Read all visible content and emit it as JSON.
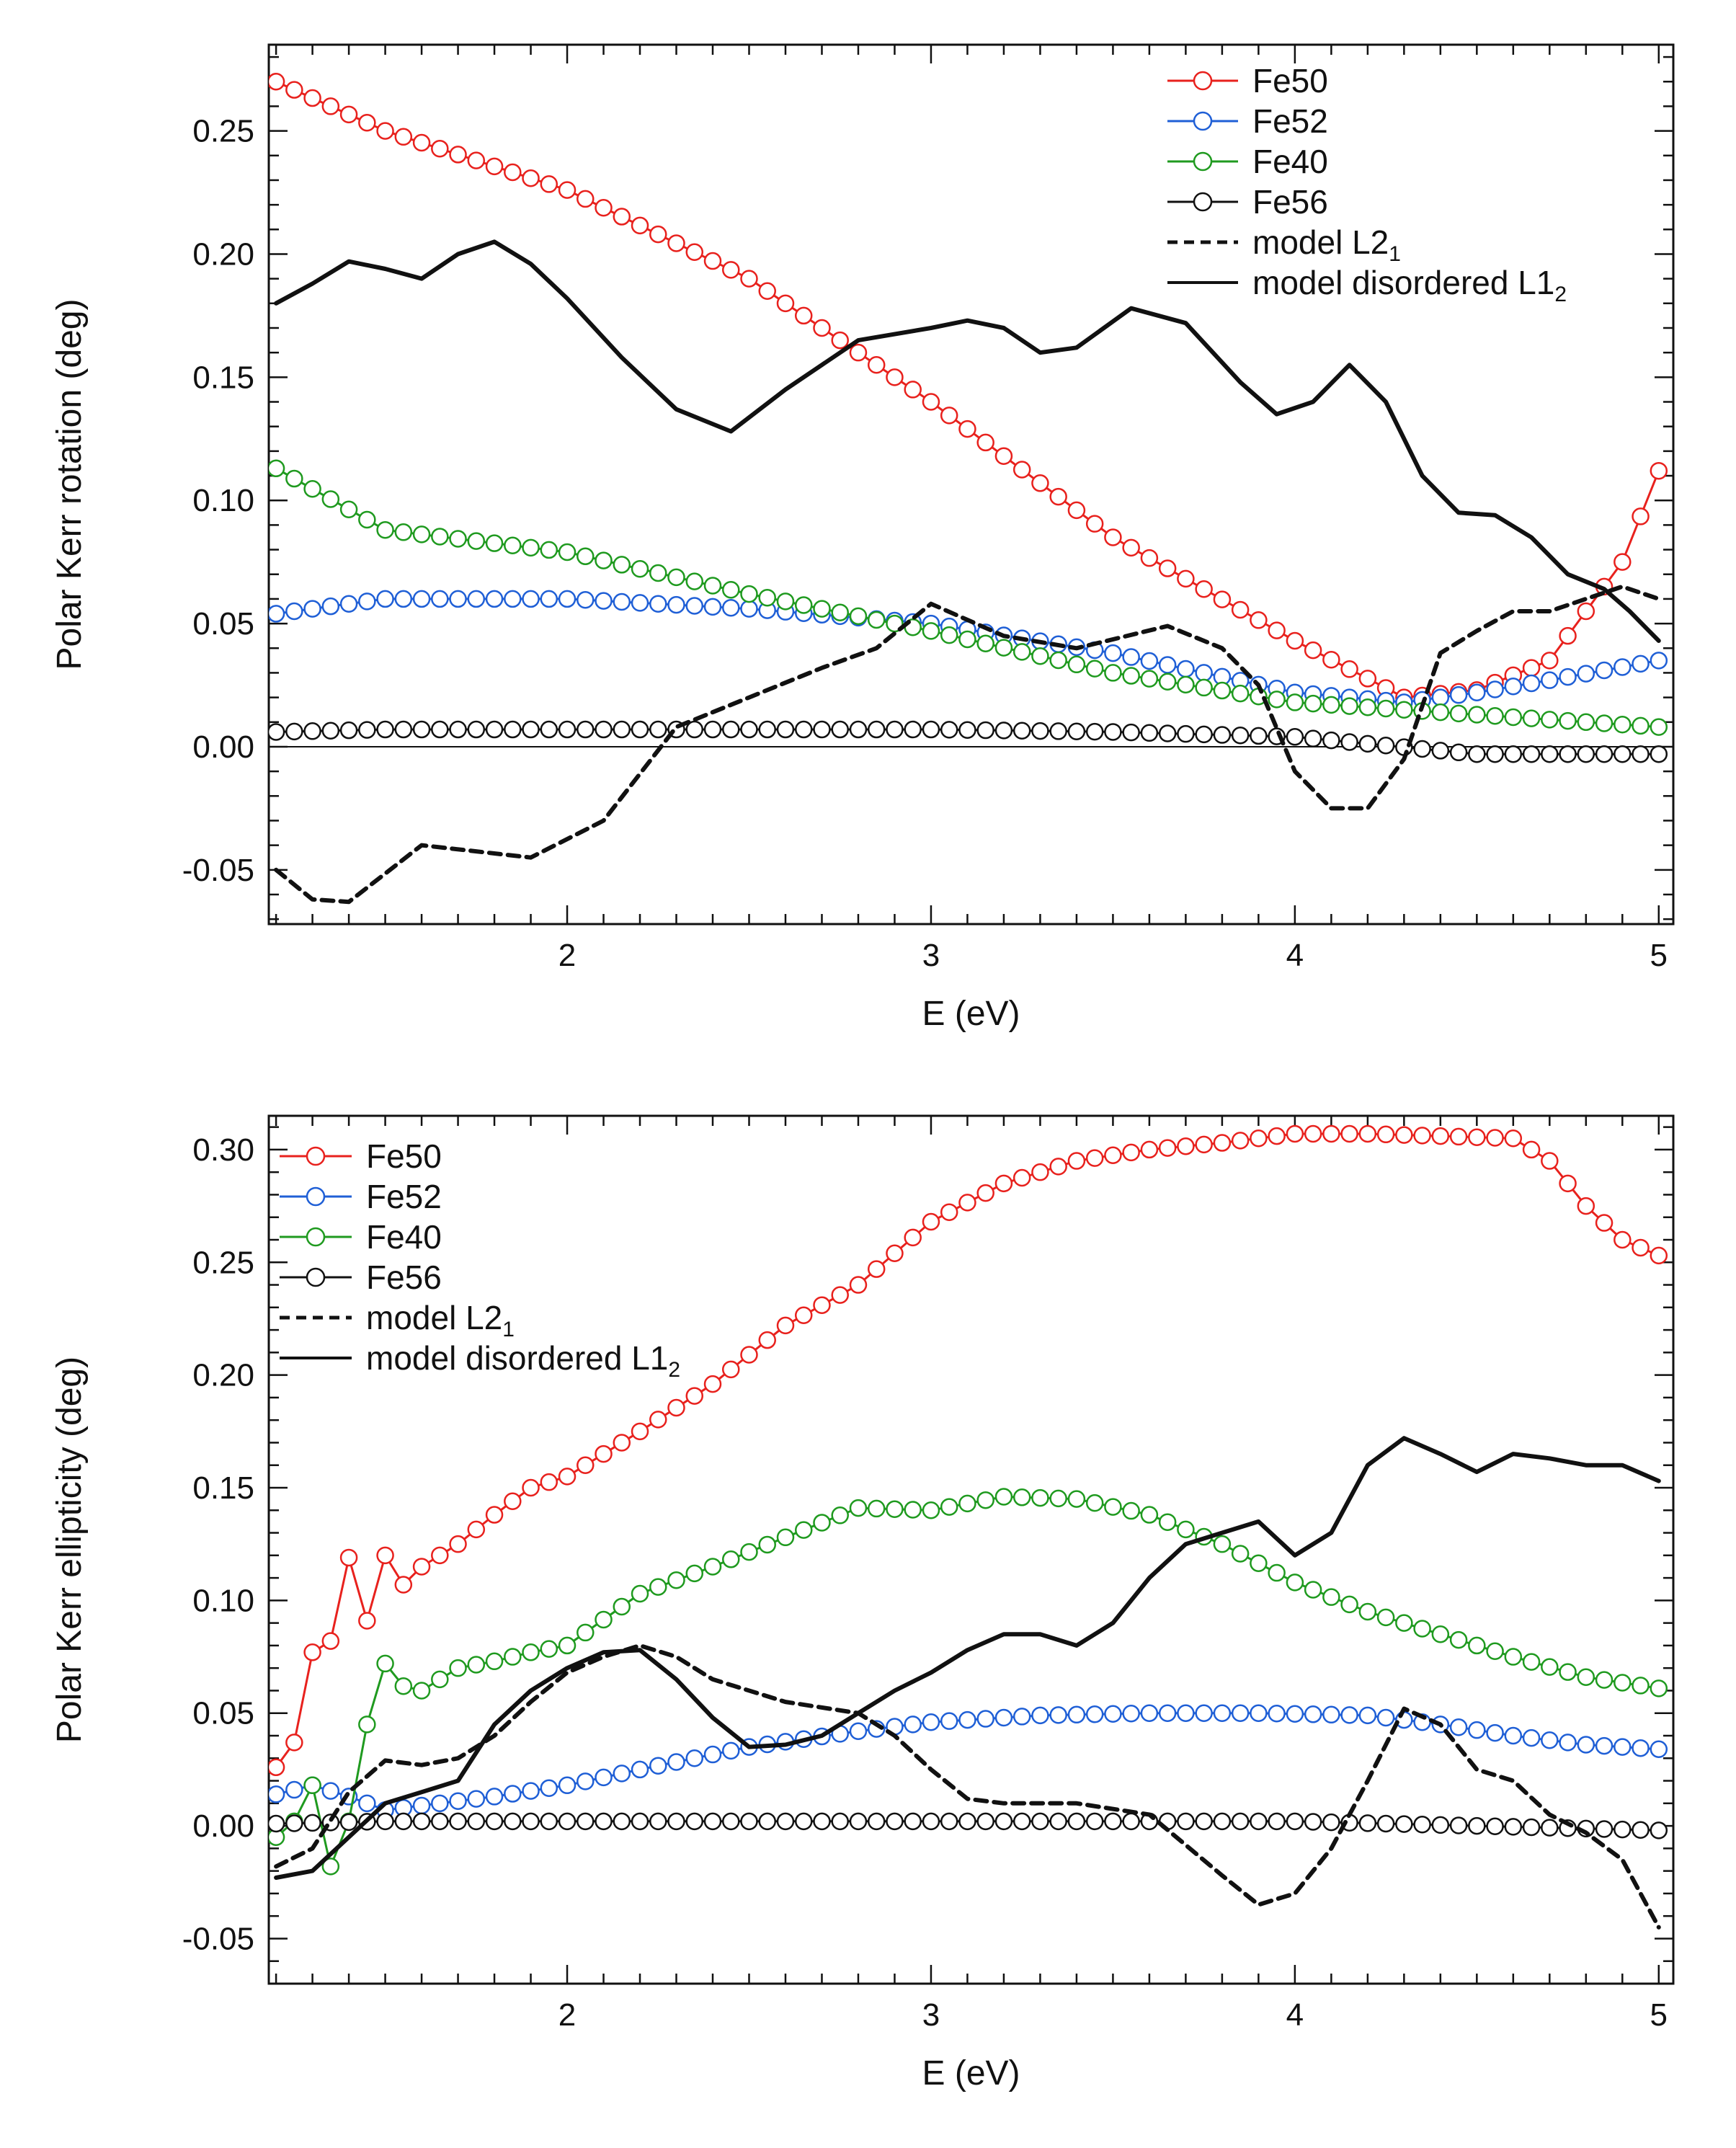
{
  "chart_data": [
    {
      "type": "line",
      "xlabel": "E (eV)",
      "ylabel": "Polar Kerr rotation (deg)",
      "xlim": [
        1.18,
        5.04
      ],
      "ylim": [
        -0.072,
        0.285
      ],
      "xticks": [
        2,
        3,
        4,
        5
      ],
      "yticks": [
        -0.05,
        0.0,
        0.05,
        0.1,
        0.15,
        0.2,
        0.25
      ],
      "ytick_labels": [
        "-0.05",
        "0.00",
        "0.05",
        "0.10",
        "0.15",
        "0.20",
        "0.25"
      ],
      "zero_line": true,
      "legend": {
        "placement": "top-right"
      },
      "series": [
        {
          "name": "Fe50",
          "style": "marker-line",
          "color": "#e8211d",
          "x": [
            1.2,
            1.5,
            2.0,
            2.5,
            3.0,
            3.5,
            4.0,
            4.3,
            4.5,
            4.7,
            4.9,
            5.0
          ],
          "y": [
            0.27,
            0.25,
            0.226,
            0.19,
            0.14,
            0.085,
            0.043,
            0.02,
            0.023,
            0.035,
            0.075,
            0.112
          ]
        },
        {
          "name": "Fe52",
          "style": "marker-line",
          "color": "#1f5fd6",
          "x": [
            1.2,
            1.5,
            2.0,
            2.5,
            3.0,
            3.5,
            4.0,
            4.3,
            4.5,
            4.7,
            5.0
          ],
          "y": [
            0.054,
            0.06,
            0.06,
            0.056,
            0.05,
            0.038,
            0.022,
            0.018,
            0.022,
            0.027,
            0.035
          ]
        },
        {
          "name": "Fe40",
          "style": "marker-line",
          "color": "#1f9a1f",
          "x": [
            1.2,
            1.5,
            2.0,
            2.5,
            3.0,
            3.5,
            4.0,
            4.5,
            5.0
          ],
          "y": [
            0.113,
            0.088,
            0.079,
            0.062,
            0.047,
            0.03,
            0.018,
            0.013,
            0.008
          ]
        },
        {
          "name": "Fe56",
          "style": "marker-line",
          "color": "#111111",
          "x": [
            1.2,
            1.5,
            2.0,
            2.5,
            3.0,
            3.5,
            4.0,
            4.5,
            5.0
          ],
          "y": [
            0.006,
            0.007,
            0.007,
            0.007,
            0.007,
            0.006,
            0.004,
            -0.003,
            -0.003
          ]
        },
        {
          "name": "model L2",
          "name_sub": "1",
          "style": "dashed",
          "color": "#111111",
          "x": [
            1.2,
            1.3,
            1.4,
            1.6,
            1.9,
            2.1,
            2.3,
            2.5,
            2.7,
            2.85,
            3.0,
            3.2,
            3.4,
            3.65,
            3.8,
            3.9,
            4.0,
            4.1,
            4.2,
            4.3,
            4.4,
            4.5,
            4.6,
            4.7,
            4.8,
            4.9,
            5.0
          ],
          "y": [
            -0.05,
            -0.062,
            -0.063,
            -0.04,
            -0.045,
            -0.03,
            0.008,
            0.02,
            0.032,
            0.04,
            0.058,
            0.045,
            0.04,
            0.049,
            0.04,
            0.025,
            -0.01,
            -0.025,
            -0.025,
            -0.005,
            0.038,
            0.047,
            0.055,
            0.055,
            0.06,
            0.065,
            0.06
          ]
        },
        {
          "name": "model disordered L1",
          "name_sub": "2",
          "style": "solid",
          "color": "#111111",
          "x": [
            1.2,
            1.3,
            1.4,
            1.5,
            1.6,
            1.7,
            1.8,
            1.9,
            2.0,
            2.15,
            2.3,
            2.45,
            2.6,
            2.8,
            3.0,
            3.1,
            3.2,
            3.3,
            3.4,
            3.55,
            3.7,
            3.85,
            3.95,
            4.05,
            4.15,
            4.25,
            4.35,
            4.45,
            4.55,
            4.65,
            4.75,
            4.85,
            4.92,
            5.0
          ],
          "y": [
            0.18,
            0.188,
            0.197,
            0.194,
            0.19,
            0.2,
            0.205,
            0.196,
            0.182,
            0.158,
            0.137,
            0.128,
            0.145,
            0.165,
            0.17,
            0.173,
            0.17,
            0.16,
            0.162,
            0.178,
            0.172,
            0.148,
            0.135,
            0.14,
            0.155,
            0.14,
            0.11,
            0.095,
            0.094,
            0.085,
            0.07,
            0.064,
            0.055,
            0.043
          ]
        }
      ]
    },
    {
      "type": "line",
      "xlabel": "E (eV)",
      "ylabel": "Polar Kerr ellipticity (deg)",
      "xlim": [
        1.18,
        5.04
      ],
      "ylim": [
        -0.07,
        0.315
      ],
      "xticks": [
        2,
        3,
        4,
        5
      ],
      "yticks": [
        -0.05,
        0.0,
        0.05,
        0.1,
        0.15,
        0.2,
        0.25,
        0.3
      ],
      "ytick_labels": [
        "-0.05",
        "0.00",
        "0.05",
        "0.10",
        "0.15",
        "0.20",
        "0.25",
        "0.30"
      ],
      "zero_line": false,
      "legend": {
        "placement": "top-left"
      },
      "series": [
        {
          "name": "Fe50",
          "style": "marker-line",
          "color": "#e8211d",
          "x": [
            1.2,
            1.25,
            1.3,
            1.35,
            1.4,
            1.45,
            1.5,
            1.55,
            1.6,
            1.7,
            1.8,
            1.9,
            2.0,
            2.2,
            2.4,
            2.6,
            2.8,
            3.0,
            3.2,
            3.4,
            3.6,
            3.8,
            4.0,
            4.2,
            4.4,
            4.6,
            4.7,
            4.8,
            4.9,
            5.0
          ],
          "y": [
            0.026,
            0.037,
            0.077,
            0.082,
            0.119,
            0.091,
            0.12,
            0.107,
            0.115,
            0.125,
            0.138,
            0.15,
            0.155,
            0.175,
            0.196,
            0.222,
            0.24,
            0.268,
            0.285,
            0.295,
            0.3,
            0.303,
            0.307,
            0.307,
            0.306,
            0.305,
            0.295,
            0.275,
            0.26,
            0.253
          ]
        },
        {
          "name": "Fe52",
          "style": "marker-line",
          "color": "#1f5fd6",
          "x": [
            1.2,
            1.3,
            1.4,
            1.5,
            1.6,
            1.8,
            2.0,
            2.2,
            2.5,
            2.8,
            3.0,
            3.3,
            3.6,
            3.9,
            4.2,
            4.4,
            4.6,
            4.8,
            5.0
          ],
          "y": [
            0.014,
            0.018,
            0.013,
            0.007,
            0.009,
            0.013,
            0.018,
            0.025,
            0.035,
            0.042,
            0.046,
            0.049,
            0.05,
            0.05,
            0.049,
            0.045,
            0.04,
            0.036,
            0.034
          ]
        },
        {
          "name": "Fe40",
          "style": "marker-line",
          "color": "#1f9a1f",
          "x": [
            1.2,
            1.25,
            1.3,
            1.35,
            1.4,
            1.45,
            1.5,
            1.55,
            1.6,
            1.7,
            1.8,
            1.9,
            2.0,
            2.2,
            2.4,
            2.6,
            2.8,
            3.0,
            3.2,
            3.4,
            3.6,
            3.8,
            4.0,
            4.2,
            4.4,
            4.6,
            4.8,
            5.0
          ],
          "y": [
            -0.005,
            0.002,
            0.018,
            -0.018,
            0.002,
            0.045,
            0.072,
            0.062,
            0.06,
            0.07,
            0.073,
            0.077,
            0.08,
            0.103,
            0.115,
            0.128,
            0.141,
            0.14,
            0.146,
            0.145,
            0.138,
            0.125,
            0.108,
            0.095,
            0.085,
            0.075,
            0.066,
            0.061
          ]
        },
        {
          "name": "Fe56",
          "style": "marker-line",
          "color": "#111111",
          "x": [
            1.2,
            1.5,
            2.0,
            2.5,
            3.0,
            3.5,
            4.0,
            4.5,
            5.0
          ],
          "y": [
            0.001,
            0.002,
            0.002,
            0.002,
            0.002,
            0.002,
            0.002,
            0.0,
            -0.002
          ]
        },
        {
          "name": "model L2",
          "name_sub": "1",
          "style": "dashed",
          "color": "#111111",
          "x": [
            1.2,
            1.3,
            1.4,
            1.5,
            1.6,
            1.7,
            1.8,
            1.9,
            2.0,
            2.1,
            2.2,
            2.3,
            2.4,
            2.6,
            2.8,
            2.9,
            3.0,
            3.1,
            3.2,
            3.4,
            3.6,
            3.8,
            3.9,
            4.0,
            4.1,
            4.2,
            4.3,
            4.4,
            4.5,
            4.6,
            4.7,
            4.8,
            4.9,
            5.0
          ],
          "y": [
            -0.018,
            -0.01,
            0.015,
            0.029,
            0.027,
            0.03,
            0.04,
            0.055,
            0.068,
            0.075,
            0.08,
            0.075,
            0.065,
            0.055,
            0.05,
            0.04,
            0.025,
            0.012,
            0.01,
            0.01,
            0.005,
            -0.022,
            -0.035,
            -0.03,
            -0.01,
            0.02,
            0.052,
            0.045,
            0.025,
            0.02,
            0.005,
            -0.003,
            -0.015,
            -0.045
          ]
        },
        {
          "name": "model disordered L1",
          "name_sub": "2",
          "style": "solid",
          "color": "#111111",
          "x": [
            1.2,
            1.3,
            1.4,
            1.5,
            1.6,
            1.7,
            1.8,
            1.9,
            2.0,
            2.1,
            2.2,
            2.3,
            2.4,
            2.5,
            2.6,
            2.7,
            2.8,
            2.9,
            3.0,
            3.1,
            3.2,
            3.3,
            3.4,
            3.5,
            3.6,
            3.7,
            3.8,
            3.9,
            4.0,
            4.1,
            4.2,
            4.3,
            4.4,
            4.5,
            4.6,
            4.7,
            4.8,
            4.9,
            5.0
          ],
          "y": [
            -0.023,
            -0.02,
            -0.005,
            0.01,
            0.015,
            0.02,
            0.045,
            0.06,
            0.07,
            0.077,
            0.078,
            0.065,
            0.048,
            0.035,
            0.036,
            0.04,
            0.05,
            0.06,
            0.068,
            0.078,
            0.085,
            0.085,
            0.08,
            0.09,
            0.11,
            0.125,
            0.13,
            0.135,
            0.12,
            0.13,
            0.16,
            0.172,
            0.165,
            0.157,
            0.165,
            0.163,
            0.16,
            0.16,
            0.153
          ]
        }
      ]
    }
  ]
}
